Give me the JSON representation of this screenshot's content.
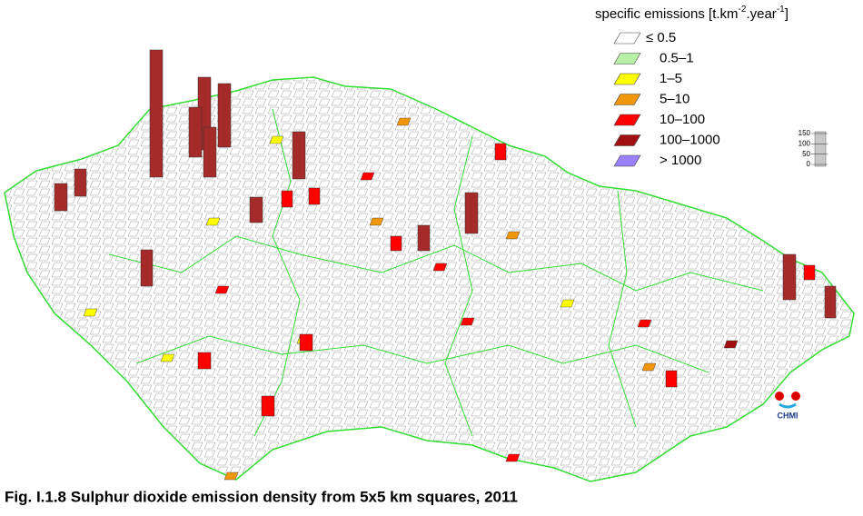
{
  "legend": {
    "title": {
      "main": "specific emissions [t.km",
      "sup1": "-2",
      "mid": ".year",
      "sup2": "-1",
      "end": "]"
    },
    "items": [
      {
        "label": "≤ 0.5",
        "color": "#ffffff"
      },
      {
        "label": "0.5–1",
        "color": "#b8f0a8"
      },
      {
        "label": "1–5",
        "color": "#ffff00"
      },
      {
        "label": "5–10",
        "color": "#f0960a"
      },
      {
        "label": "10–100",
        "color": "#ff0000"
      },
      {
        "label": "100–1000",
        "color": "#a01010"
      },
      {
        "label": "> 1000",
        "color": "#9980ff"
      }
    ]
  },
  "scale": {
    "ticks": [
      150,
      100,
      50,
      0
    ]
  },
  "logo": "CHMI",
  "caption": "Fig. I.1.8  Sulphur dioxide emission density from 5x5 km squares, 2011"
}
